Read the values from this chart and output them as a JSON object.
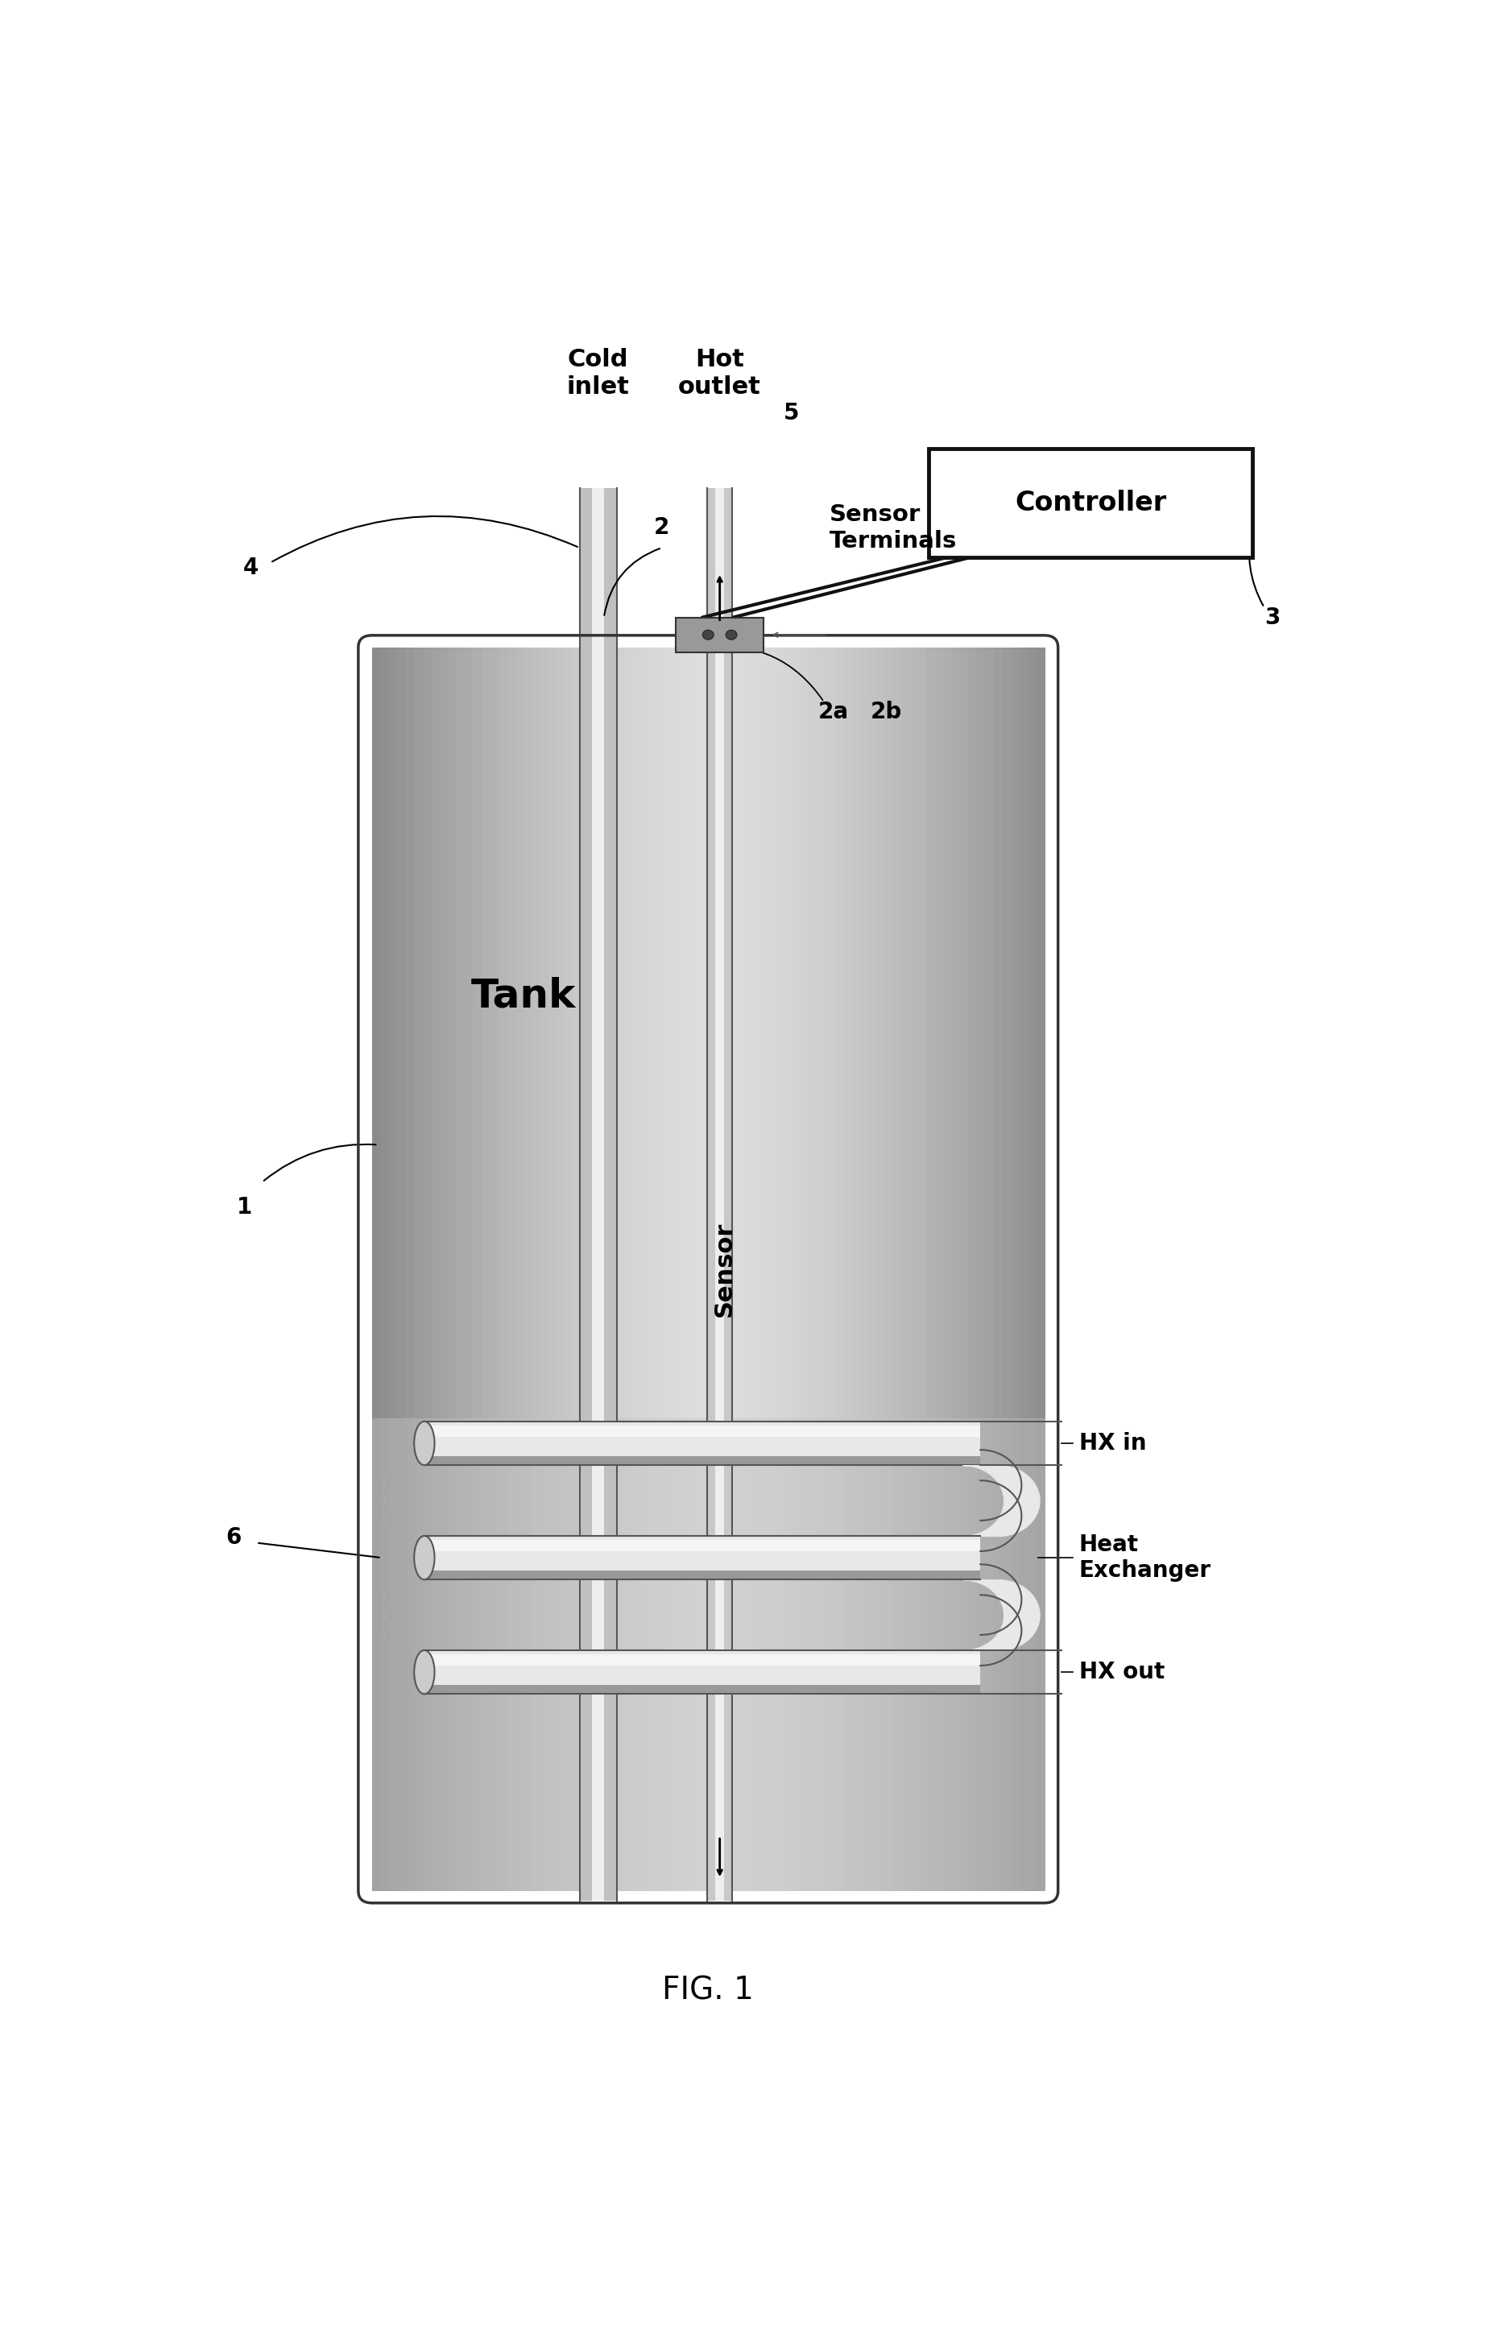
{
  "fig_width": 18.56,
  "fig_height": 28.88,
  "bg_color": "#ffffff",
  "title": "FIG. 1",
  "tank_label": "Tank",
  "sensor_label": "Sensor",
  "labels": {
    "cold_inlet": "Cold\ninlet",
    "hot_outlet": "Hot\noutlet",
    "controller": "Controller",
    "sensor_terminals": "Sensor\nTerminals",
    "hx_in": "HX in",
    "heat_exchanger": "Heat\nExchanger",
    "hx_out": "HX out"
  },
  "numbers": {
    "n1": "1",
    "n2": "2",
    "n2a": "2a",
    "n2b": "2b",
    "n3": "3",
    "n4": "4",
    "n5": "5",
    "n6": "6"
  },
  "colors": {
    "tank_side": "#909090",
    "tank_center": "#d8d8d8",
    "tank_bottom_zone": "#c8c8c8",
    "tank_border": "#333333",
    "pipe_outer": "#888888",
    "pipe_inner_highlight": "#f0f0f0",
    "pipe_fill": "#cccccc",
    "hx_tube_fill": "#e0e0e0",
    "hx_tube_edge": "#555555",
    "connector_fill": "#bbbbbb",
    "connector_edge": "#333333",
    "text_color": "#000000",
    "white": "#ffffff",
    "wire_color": "#111111",
    "arrow_color": "#000000"
  }
}
